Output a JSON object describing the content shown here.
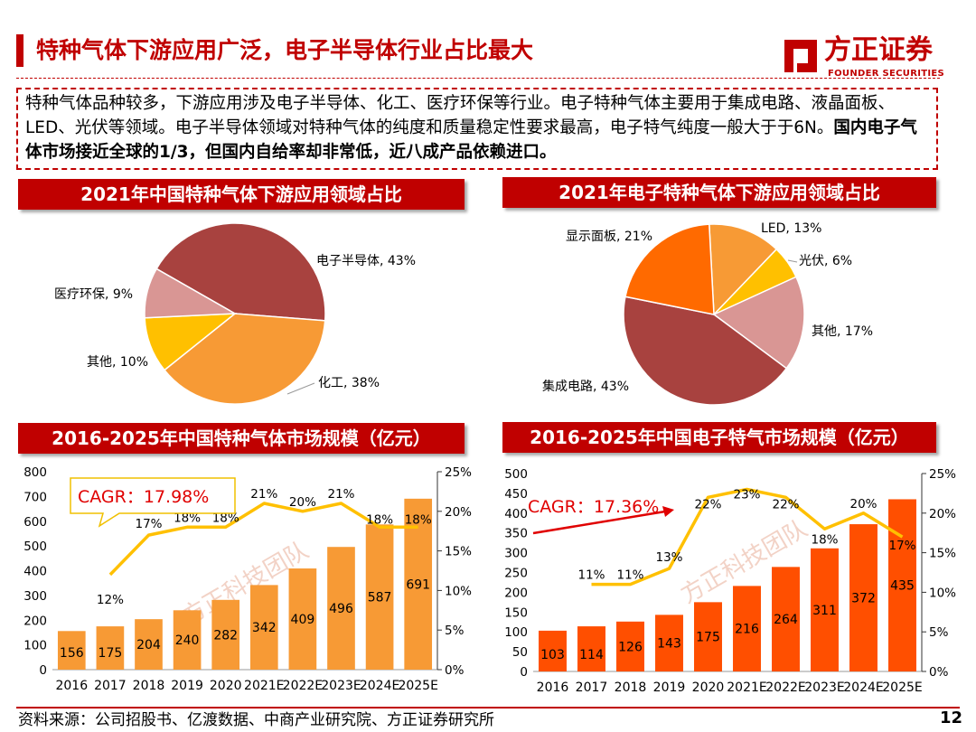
{
  "header": {
    "title": "特种气体下游应用广泛，电子半导体行业占比最大",
    "logo_cn": "方正证券",
    "logo_en": "FOUNDER SECURITIES"
  },
  "intro": {
    "text_normal": "特种气体品种较多，下游应用涉及电子半导体、化工、医疗环保等行业。电子特种气体主要用于集成电路、液晶面板、LED、光伏等领域。电子半导体领域对特种气体的纯度和质量稳定性要求最高，电子特气纯度一般大于于6N。",
    "text_bold": "国内电子气体市场接近全球的1/3，但国内自给率却非常低，近八成产品依赖进口。"
  },
  "footer": {
    "source": "资料来源：公司招股书、亿渡数据、中商产业研究院、方正证券研究所",
    "page": "12"
  },
  "watermark": "方正科技团队",
  "chart_data": [
    {
      "type": "pie",
      "title": "2021年中国特种气体下游应用领域占比",
      "slices": [
        {
          "label": "电子半导体",
          "value": 43,
          "text": "电子半导体, 43%",
          "color": "#a8423f"
        },
        {
          "label": "化工",
          "value": 38,
          "text": "化工, 38%",
          "color": "#f79a35"
        },
        {
          "label": "其他",
          "value": 10,
          "text": "其他, 10%",
          "color": "#ffc000"
        },
        {
          "label": "医疗环保",
          "value": 9,
          "text": "医疗环保, 9%",
          "color": "#d99694"
        }
      ]
    },
    {
      "type": "pie",
      "title": "2021年电子特种气体下游应用领域占比",
      "slices": [
        {
          "label": "LED",
          "value": 13,
          "text": "LED, 13%",
          "color": "#f79a35"
        },
        {
          "label": "光伏",
          "value": 6,
          "text": "光伏, 6%",
          "color": "#ffc000"
        },
        {
          "label": "其他",
          "value": 17,
          "text": "其他, 17%",
          "color": "#d99694"
        },
        {
          "label": "集成电路",
          "value": 43,
          "text": "集成电路, 43%",
          "color": "#a8423f"
        },
        {
          "label": "显示面板",
          "value": 21,
          "text": "显示面板, 21%",
          "color": "#ff6a00"
        }
      ]
    },
    {
      "type": "bar",
      "title": "2016-2025年中国特种气体市场规模（亿元）",
      "categories": [
        "2016",
        "2017",
        "2018",
        "2019",
        "2020",
        "2021E",
        "2022E",
        "2023E",
        "2024E",
        "2025E"
      ],
      "series": [
        {
          "values": [
            156,
            175,
            204,
            240,
            282,
            342,
            409,
            496,
            587,
            691
          ],
          "color": "#f79a35"
        },
        {
          "values": [
            null,
            12,
            17,
            18,
            18,
            21,
            20,
            21,
            18,
            18
          ],
          "color": "#ffc000",
          "kind": "line-right-axis"
        }
      ],
      "ylim": [
        0,
        800
      ],
      "yticks": [
        0,
        100,
        200,
        300,
        400,
        500,
        600,
        700,
        800
      ],
      "y2lim": [
        0,
        25
      ],
      "y2ticks": [
        "0%",
        "5%",
        "10%",
        "15%",
        "20%",
        "25%"
      ],
      "annotation": "CAGR：17.98%"
    },
    {
      "type": "bar",
      "title": "2016-2025年中国电子特气市场规模（亿元）",
      "categories": [
        "2016",
        "2017",
        "2018",
        "2019",
        "2020",
        "2021E",
        "2022E",
        "2023E",
        "2024E",
        "2025E"
      ],
      "series": [
        {
          "values": [
            103,
            114,
            126,
            143,
            175,
            216,
            264,
            311,
            372,
            435
          ],
          "color": "#ff4f00"
        },
        {
          "values": [
            null,
            11,
            11,
            13,
            22,
            23,
            22,
            18,
            20,
            17
          ],
          "color": "#ffc000",
          "kind": "line-right-axis"
        }
      ],
      "ylim": [
        0,
        500
      ],
      "yticks": [
        0,
        50,
        100,
        150,
        200,
        250,
        300,
        350,
        400,
        450,
        500
      ],
      "y2lim": [
        0,
        25
      ],
      "y2ticks": [
        "0%",
        "5%",
        "10%",
        "15%",
        "20%",
        "25%"
      ],
      "annotation": "CAGR：17.36%"
    }
  ]
}
